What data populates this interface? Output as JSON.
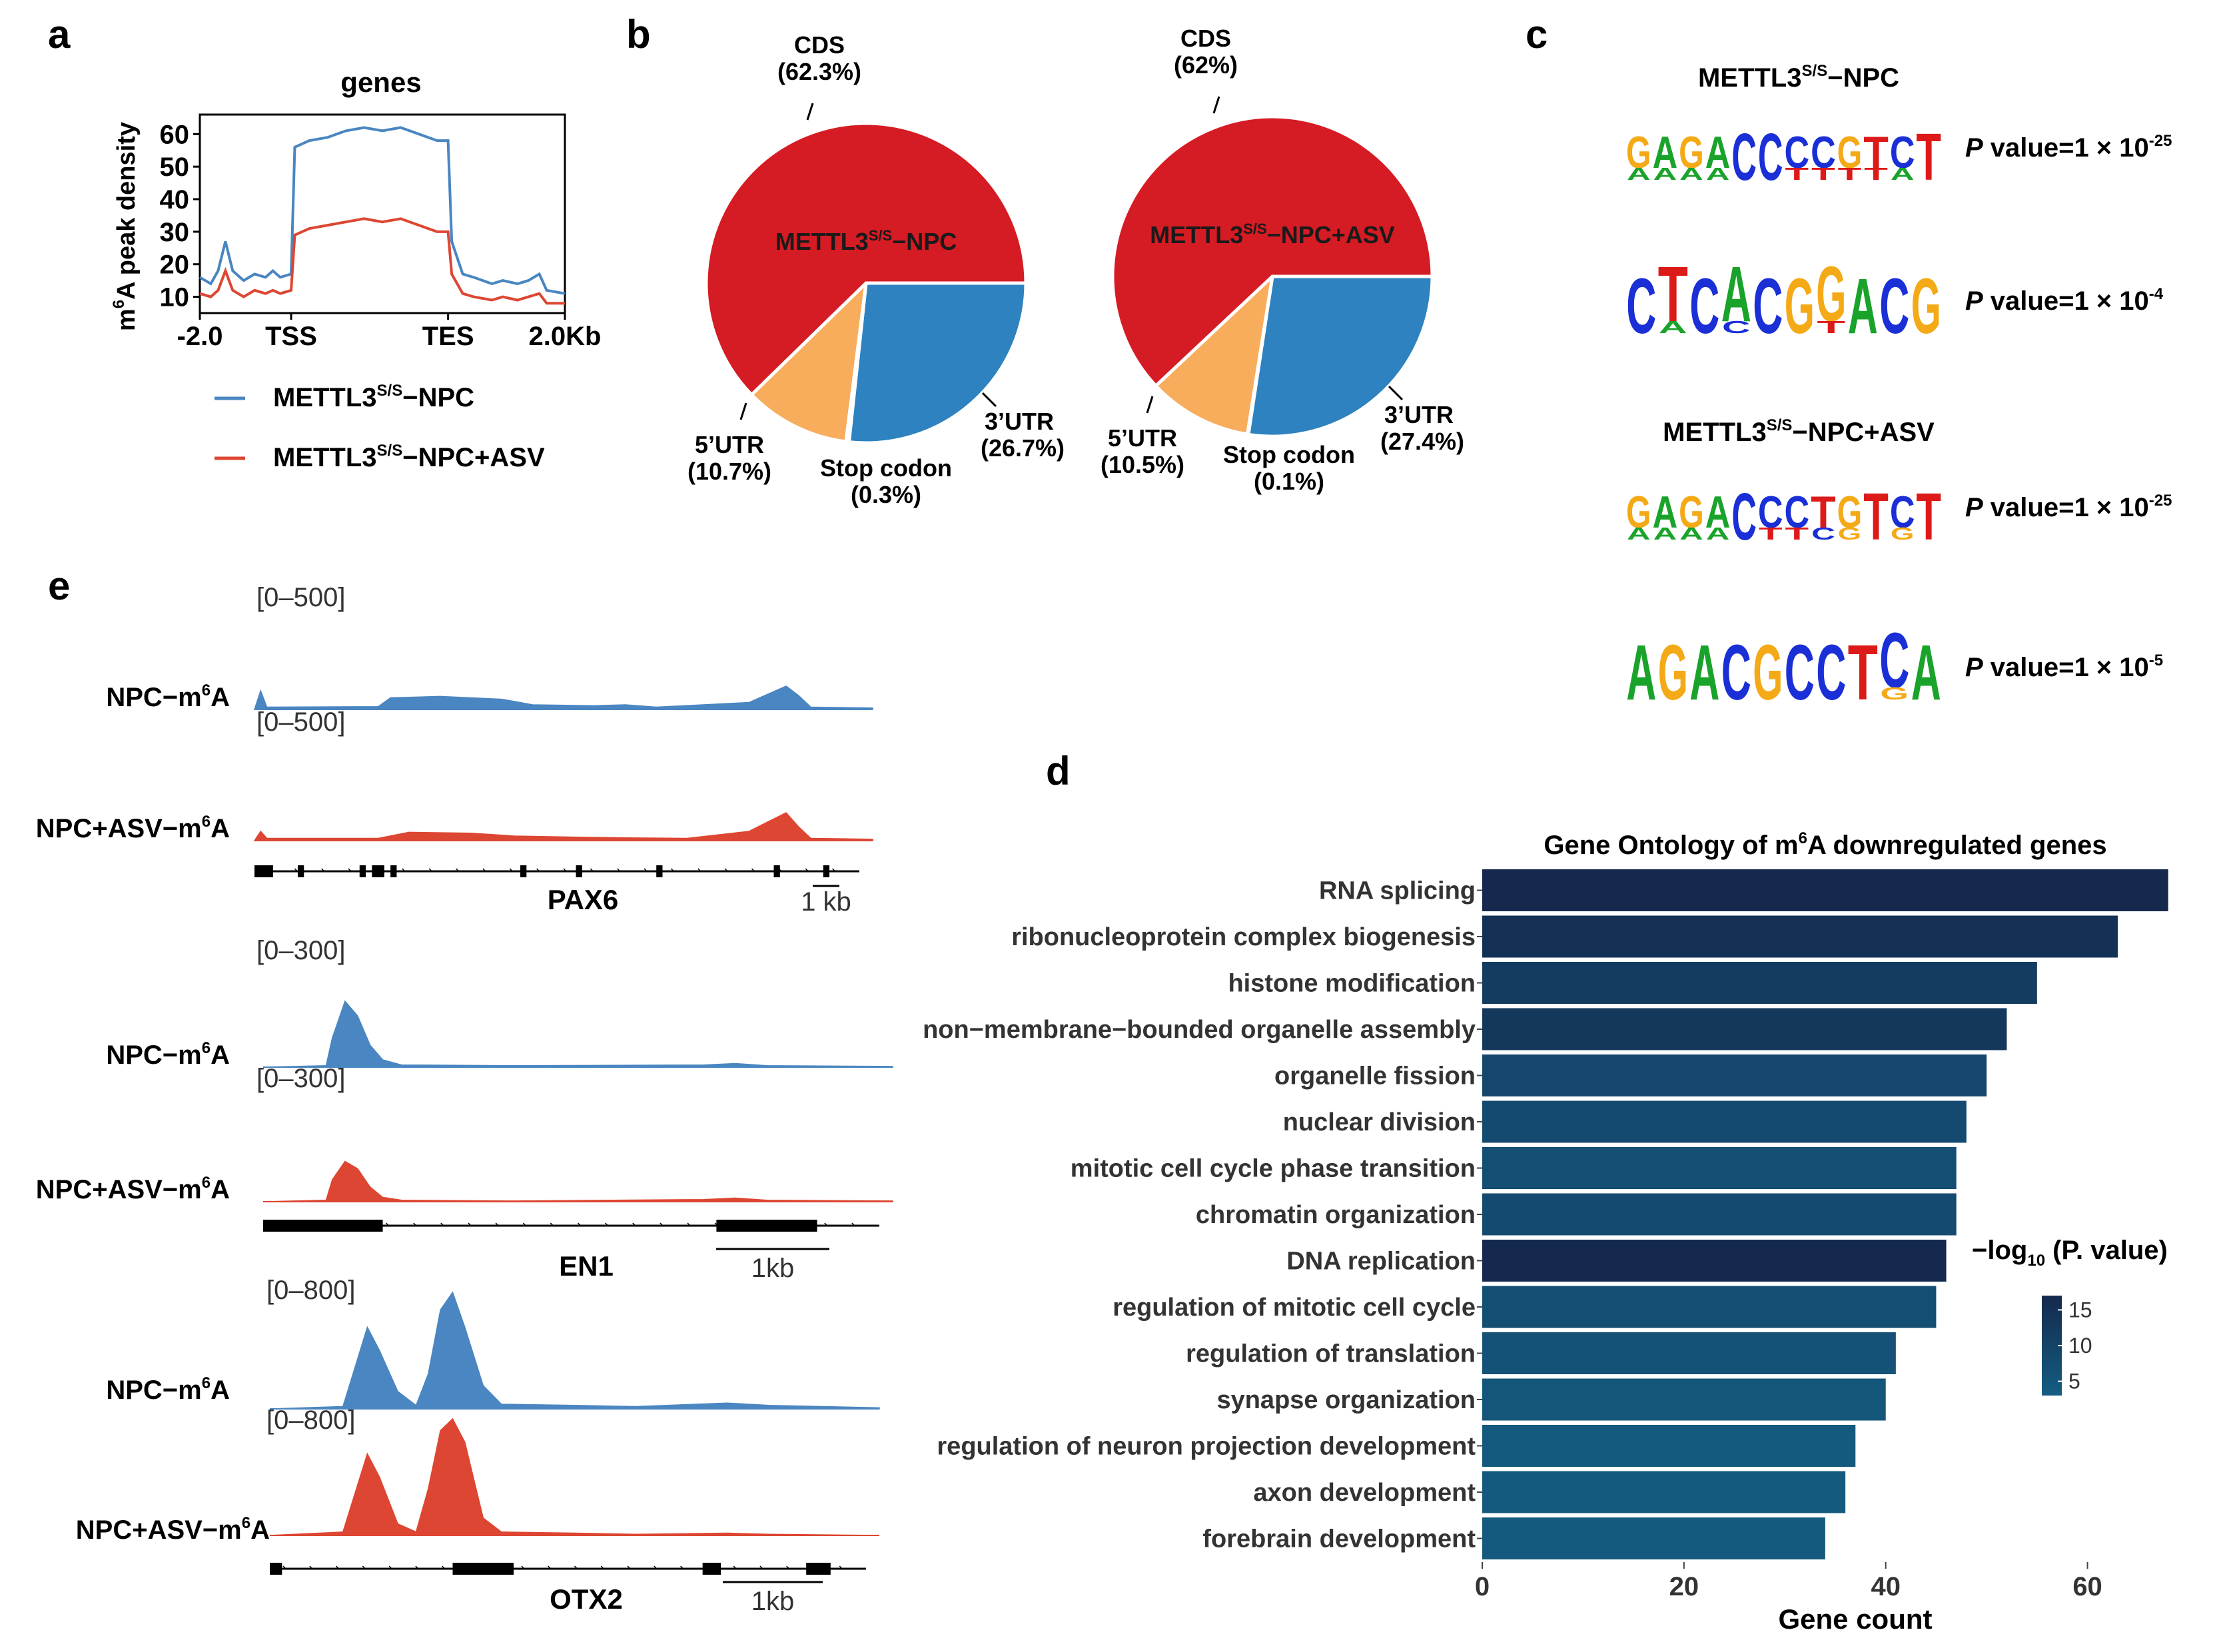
{
  "panel_letters": {
    "a": "a",
    "b": "b",
    "c": "c",
    "d": "d",
    "e": "e"
  },
  "colors": {
    "npc": "#4a86c1",
    "asv": "#dd4632",
    "cds": "#d51b23",
    "utr3": "#2d82bf",
    "utr5": "#f8ad5d",
    "stop": "#ffffff",
    "bar_low": "#13577a",
    "bar_high": "#14294d",
    "motif_A": "#1aa32a",
    "motif_C": "#1a2fd6",
    "motif_G": "#f4a916",
    "motif_T": "#dc1a18"
  },
  "chart_data": [
    {
      "id": "a",
      "type": "line",
      "title": "genes",
      "ylabel_base": "m",
      "ylabel_sup": "6",
      "ylabel_rest": "A peak density",
      "xticks": [
        "-2.0",
        "TSS",
        "TES",
        "2.0Kb"
      ],
      "yticks": [
        10,
        20,
        30,
        40,
        50,
        60
      ],
      "ylim": [
        5,
        66
      ],
      "x_domain": [
        0,
        100
      ],
      "series": [
        {
          "key": "npc",
          "name_base": "METTL3",
          "name_sup": "S/S",
          "name_rest": "−NPC",
          "points": [
            [
              0,
              16
            ],
            [
              3,
              14
            ],
            [
              5,
              18
            ],
            [
              7,
              27
            ],
            [
              9,
              18
            ],
            [
              12,
              15
            ],
            [
              15,
              17
            ],
            [
              18,
              16
            ],
            [
              20,
              18
            ],
            [
              22,
              16
            ],
            [
              25,
              17
            ],
            [
              26,
              56
            ],
            [
              30,
              58
            ],
            [
              35,
              59
            ],
            [
              40,
              61
            ],
            [
              45,
              62
            ],
            [
              50,
              61
            ],
            [
              55,
              62
            ],
            [
              60,
              60
            ],
            [
              65,
              58
            ],
            [
              68,
              58
            ],
            [
              69,
              27
            ],
            [
              72,
              17
            ],
            [
              75,
              16
            ],
            [
              80,
              14
            ],
            [
              83,
              15
            ],
            [
              87,
              14
            ],
            [
              90,
              15
            ],
            [
              93,
              17
            ],
            [
              95,
              12
            ],
            [
              100,
              11
            ]
          ]
        },
        {
          "key": "asv",
          "name_base": "METTL3",
          "name_sup": "S/S",
          "name_rest": "−NPC+ASV",
          "points": [
            [
              0,
              11
            ],
            [
              3,
              10
            ],
            [
              5,
              12
            ],
            [
              7,
              18
            ],
            [
              9,
              12
            ],
            [
              12,
              10
            ],
            [
              15,
              12
            ],
            [
              18,
              11
            ],
            [
              20,
              12
            ],
            [
              22,
              11
            ],
            [
              25,
              12
            ],
            [
              26,
              29
            ],
            [
              30,
              31
            ],
            [
              35,
              32
            ],
            [
              40,
              33
            ],
            [
              45,
              34
            ],
            [
              50,
              33
            ],
            [
              55,
              34
            ],
            [
              60,
              32
            ],
            [
              65,
              30
            ],
            [
              68,
              30
            ],
            [
              69,
              17
            ],
            [
              72,
              11
            ],
            [
              75,
              10
            ],
            [
              80,
              9
            ],
            [
              83,
              10
            ],
            [
              87,
              9
            ],
            [
              90,
              10
            ],
            [
              93,
              11
            ],
            [
              95,
              8
            ],
            [
              100,
              8
            ]
          ]
        }
      ]
    },
    {
      "id": "b",
      "type": "pie",
      "pies": [
        {
          "center_label_base": "METTL3",
          "center_label_sup": "S/S",
          "center_label_rest": "−NPC",
          "slices": [
            {
              "key": "cds",
              "label": "CDS",
              "pct": "(62.3%)",
              "value": 62.3
            },
            {
              "key": "utr3",
              "label": "3’UTR",
              "pct": "(26.7%)",
              "value": 26.7
            },
            {
              "key": "stop",
              "label": "Stop codon",
              "pct": "(0.3%)",
              "value": 0.3
            },
            {
              "key": "utr5",
              "label": "5’UTR",
              "pct": "(10.7%)",
              "value": 10.7
            }
          ]
        },
        {
          "center_label_base": "METTL3",
          "center_label_sup": "S/S",
          "center_label_rest": "−NPC+ASV",
          "slices": [
            {
              "key": "cds",
              "label": "CDS",
              "pct": "(62%)",
              "value": 62.0
            },
            {
              "key": "utr3",
              "label": "3’UTR",
              "pct": "(27.4%)",
              "value": 27.4
            },
            {
              "key": "stop",
              "label": "Stop codon",
              "pct": "(0.1%)",
              "value": 0.1
            },
            {
              "key": "utr5",
              "label": "5’UTR",
              "pct": "(10.5%)",
              "value": 10.5
            }
          ]
        }
      ]
    },
    {
      "id": "c",
      "type": "table",
      "groups": [
        {
          "title_base": "METTL3",
          "title_sup": "S/S",
          "title_rest": "−NPC",
          "motifs": [
            {
              "letters": "GAGACCCCGTCT",
              "minor": "AAAA  TTTTA ",
              "p_label": "P",
              "p_text": " value=1 × 10",
              "p_exp": "-25"
            },
            {
              "letters": "CTCACGGACG",
              "minor": " A C  T   ",
              "p_label": "P",
              "p_text": " value=1 × 10",
              "p_exp": "-4"
            }
          ]
        },
        {
          "title_base": "METTL3",
          "title_sup": "S/S",
          "title_rest": "−NPC+ASV",
          "motifs": [
            {
              "letters": "GAGACCCTGTCT",
              "minor": "AAAA TTCG G ",
              "p_label": "P",
              "p_text": " value=1 × 10",
              "p_exp": "-25"
            },
            {
              "letters": "AGACGCCTCA",
              "minor": "        G ",
              "p_label": "P",
              "p_text": " value=1 × 10",
              "p_exp": "-5"
            }
          ]
        }
      ]
    },
    {
      "id": "d",
      "type": "bar",
      "orientation": "horizontal",
      "title_base": "Gene Ontology of m",
      "title_sup": "6",
      "title_rest": "A downregulated genes",
      "xlabel": "Gene count",
      "xticks": [
        0,
        20,
        40,
        60
      ],
      "xlim": [
        0,
        70
      ],
      "categories": [
        "RNA splicing",
        "ribonucleoprotein complex biogenesis",
        "histone modification",
        "non−membrane−bounded organelle assembly",
        "organelle fission",
        "nuclear division",
        "mitotic cell cycle phase transition",
        "chromatin organization",
        "DNA replication",
        "regulation of mitotic cell cycle",
        "regulation of translation",
        "synapse organization",
        "regulation of neuron projection development",
        "axon development",
        "forebrain development"
      ],
      "values": [
        68,
        63,
        55,
        52,
        50,
        48,
        47,
        47,
        46,
        45,
        41,
        40,
        37,
        36,
        34
      ],
      "color_values": [
        17,
        15,
        12,
        13,
        9,
        8,
        7,
        8,
        17,
        7,
        6,
        5,
        4,
        4,
        4
      ],
      "legend": {
        "title_base": "−log",
        "title_sub": "10",
        "title_rest": " (P. value)",
        "ticks": [
          15,
          10,
          5
        ],
        "range": [
          3,
          17
        ]
      }
    },
    {
      "id": "e",
      "type": "area",
      "tracks": [
        {
          "gene": "PAX6",
          "range_label": "[0–500]",
          "scale_label": "1 kb",
          "npc_label_base": "NPC−m",
          "npc_label_sup": "6",
          "npc_label_rest": "A",
          "asv_label_base": "NPC+ASV−m",
          "asv_label_sup": "6",
          "asv_label_rest": "A",
          "npc": [
            [
              0,
              0
            ],
            [
              1,
              40
            ],
            [
              2,
              5
            ],
            [
              20,
              6
            ],
            [
              22,
              25
            ],
            [
              30,
              28
            ],
            [
              40,
              22
            ],
            [
              45,
              10
            ],
            [
              55,
              8
            ],
            [
              60,
              10
            ],
            [
              65,
              5
            ],
            [
              80,
              15
            ],
            [
              86,
              50
            ],
            [
              88,
              30
            ],
            [
              90,
              5
            ],
            [
              100,
              3
            ]
          ],
          "asv": [
            [
              0,
              0
            ],
            [
              1,
              20
            ],
            [
              2,
              5
            ],
            [
              20,
              5
            ],
            [
              25,
              18
            ],
            [
              35,
              16
            ],
            [
              42,
              10
            ],
            [
              50,
              8
            ],
            [
              60,
              6
            ],
            [
              70,
              5
            ],
            [
              80,
              20
            ],
            [
              86,
              60
            ],
            [
              88,
              30
            ],
            [
              90,
              5
            ],
            [
              100,
              3
            ]
          ]
        },
        {
          "gene": "EN1",
          "range_label": "[0–300]",
          "scale_label": "1kb",
          "npc_label_base": "NPC−m",
          "npc_label_sup": "6",
          "npc_label_rest": "A",
          "asv_label_base": "NPC+ASV−m",
          "asv_label_sup": "6",
          "asv_label_rest": "A",
          "npc": [
            [
              0,
              0
            ],
            [
              10,
              2
            ],
            [
              11,
              40
            ],
            [
              13,
              90
            ],
            [
              15,
              70
            ],
            [
              17,
              30
            ],
            [
              19,
              10
            ],
            [
              22,
              3
            ],
            [
              40,
              2
            ],
            [
              70,
              3
            ],
            [
              75,
              5
            ],
            [
              80,
              2
            ],
            [
              100,
              1
            ]
          ],
          "asv": [
            [
              0,
              0
            ],
            [
              10,
              2
            ],
            [
              11,
              30
            ],
            [
              13,
              55
            ],
            [
              15,
              45
            ],
            [
              17,
              20
            ],
            [
              19,
              6
            ],
            [
              22,
              2
            ],
            [
              40,
              1
            ],
            [
              70,
              3
            ],
            [
              75,
              5
            ],
            [
              80,
              2
            ],
            [
              100,
              1
            ]
          ]
        },
        {
          "gene": "OTX2",
          "range_label": "[0–800]",
          "scale_label": "1kb",
          "npc_label_base": "NPC−m",
          "npc_label_sup": "6",
          "npc_label_rest": "A",
          "asv_label_base": "NPC+ASV−m",
          "asv_label_sup": "6",
          "asv_label_rest": "A",
          "npc": [
            [
              0,
              0
            ],
            [
              12,
              2
            ],
            [
              16,
              70
            ],
            [
              18,
              50
            ],
            [
              21,
              15
            ],
            [
              24,
              3
            ],
            [
              26,
              30
            ],
            [
              28,
              85
            ],
            [
              30,
              100
            ],
            [
              32,
              70
            ],
            [
              35,
              20
            ],
            [
              38,
              4
            ],
            [
              50,
              3
            ],
            [
              60,
              2
            ],
            [
              75,
              5
            ],
            [
              82,
              3
            ],
            [
              100,
              1
            ]
          ],
          "asv": [
            [
              0,
              0
            ],
            [
              12,
              3
            ],
            [
              16,
              70
            ],
            [
              18,
              50
            ],
            [
              21,
              10
            ],
            [
              24,
              3
            ],
            [
              26,
              40
            ],
            [
              28,
              90
            ],
            [
              30,
              100
            ],
            [
              32,
              80
            ],
            [
              35,
              15
            ],
            [
              38,
              3
            ],
            [
              50,
              2
            ],
            [
              60,
              1
            ],
            [
              75,
              2
            ],
            [
              82,
              1
            ],
            [
              100,
              0
            ]
          ]
        }
      ]
    }
  ]
}
